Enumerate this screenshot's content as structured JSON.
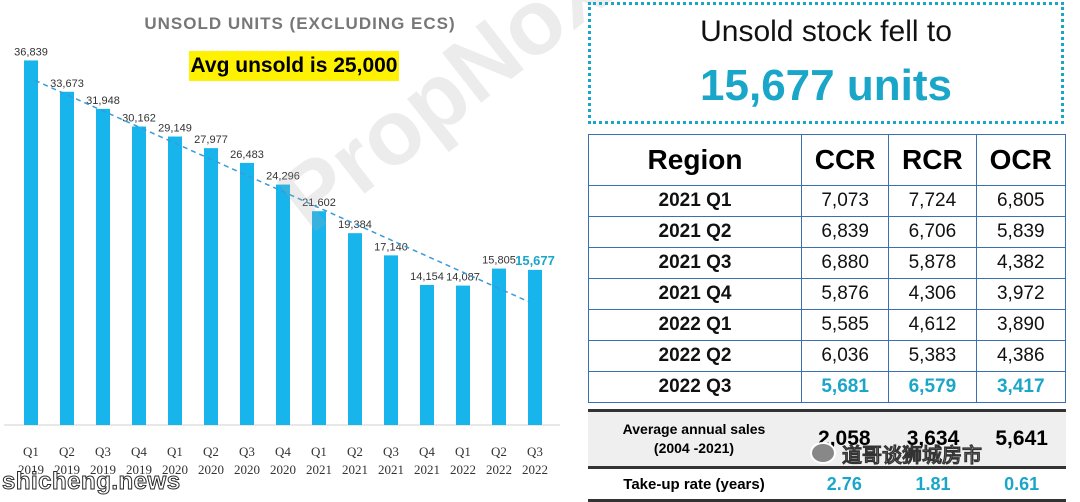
{
  "chart_data": {
    "type": "bar",
    "title": "UNSOLD UNITS (EXCLUDING ECS)",
    "annotation": "Avg unsold is 25,000",
    "categories": [
      [
        "Q1",
        "2019"
      ],
      [
        "Q2",
        "2019"
      ],
      [
        "Q3",
        "2019"
      ],
      [
        "Q4",
        "2019"
      ],
      [
        "Q1",
        "2020"
      ],
      [
        "Q2",
        "2020"
      ],
      [
        "Q3",
        "2020"
      ],
      [
        "Q4",
        "2020"
      ],
      [
        "Q1",
        "2021"
      ],
      [
        "Q2",
        "2021"
      ],
      [
        "Q3",
        "2021"
      ],
      [
        "Q4",
        "2021"
      ],
      [
        "Q1",
        "2022"
      ],
      [
        "Q2",
        "2022"
      ],
      [
        "Q3",
        "2022"
      ]
    ],
    "values": [
      36839,
      33673,
      31948,
      30162,
      29149,
      27977,
      26483,
      24296,
      21602,
      19384,
      17140,
      14154,
      14087,
      15805,
      15677
    ],
    "value_labels": [
      "36,839",
      "33,673",
      "31,948",
      "30,162",
      "29,149",
      "27,977",
      "26,483",
      "24,296",
      "21,602",
      "19,384",
      "17,140",
      "14,154",
      "14,087",
      "15,805",
      "15,677"
    ],
    "highlight_index": 14,
    "trendline": {
      "style": "dashed",
      "from_index": 0,
      "to_index": 14
    },
    "ylim": [
      0,
      38500
    ],
    "grid": false,
    "colors": {
      "bar": "#18b4ec",
      "highlight_label": "#1aa6c9",
      "label": "#333333",
      "trend": "#3a9ad9"
    }
  },
  "headline": {
    "line1": "Unsold stock fell to",
    "line2": "15,677 units"
  },
  "region_table": {
    "headers": [
      "Region",
      "CCR",
      "RCR",
      "OCR"
    ],
    "rows": [
      {
        "label": "2021 Q1",
        "ccr": "7,073",
        "rcr": "7,724",
        "ocr": "6,805"
      },
      {
        "label": "2021 Q2",
        "ccr": "6,839",
        "rcr": "6,706",
        "ocr": "5,839"
      },
      {
        "label": "2021 Q3",
        "ccr": "6,880",
        "rcr": "5,878",
        "ocr": "4,382"
      },
      {
        "label": "2021 Q4",
        "ccr": "5,876",
        "rcr": "4,306",
        "ocr": "3,972"
      },
      {
        "label": "2022 Q1",
        "ccr": "5,585",
        "rcr": "4,612",
        "ocr": "3,890"
      },
      {
        "label": "2022 Q2",
        "ccr": "6,036",
        "rcr": "5,383",
        "ocr": "4,386"
      },
      {
        "label": "2022 Q3",
        "ccr": "5,681",
        "rcr": "6,579",
        "ocr": "3,417"
      }
    ],
    "summary": {
      "sales_label": "Average annual sales",
      "sales_sub": "(2004 -2021)",
      "sales": {
        "ccr": "2,058",
        "rcr": "3,634",
        "ocr": "5,641"
      },
      "takeup_label": "Take-up rate (years)",
      "takeup": {
        "ccr": "2.76",
        "rcr": "1.81",
        "ocr": "0.61"
      }
    }
  },
  "watermarks": {
    "propnox": "PropNox",
    "site": "shicheng.news",
    "wechat": "道哥谈狮城房市"
  }
}
